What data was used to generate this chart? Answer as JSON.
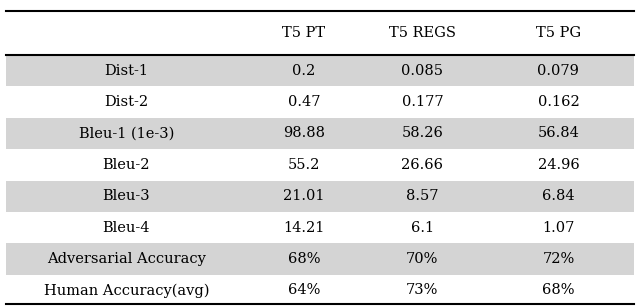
{
  "columns": [
    "",
    "T5 PT",
    "T5 REGS",
    "T5 PG"
  ],
  "rows": [
    [
      "Dist-1",
      "0.2",
      "0.085",
      "0.079"
    ],
    [
      "Dist-2",
      "0.47",
      "0.177",
      "0.162"
    ],
    [
      "Bleu-1 (1e-3)",
      "98.88",
      "58.26",
      "56.84"
    ],
    [
      "Bleu-2",
      "55.2",
      "26.66",
      "24.96"
    ],
    [
      "Bleu-3",
      "21.01",
      "8.57",
      "6.84"
    ],
    [
      "Bleu-4",
      "14.21",
      "6.1",
      "1.07"
    ],
    [
      "Adversarial Accuracy",
      "68%",
      "70%",
      "72%"
    ],
    [
      "Human Accuracy(avg)",
      "64%",
      "73%",
      "68%"
    ]
  ],
  "shaded_rows": [
    0,
    2,
    4,
    6
  ],
  "shade_color": "#d4d4d4",
  "bg_color": "#ffffff",
  "font_size": 10.5,
  "header_font_size": 10.5,
  "fig_width": 6.4,
  "fig_height": 3.06
}
